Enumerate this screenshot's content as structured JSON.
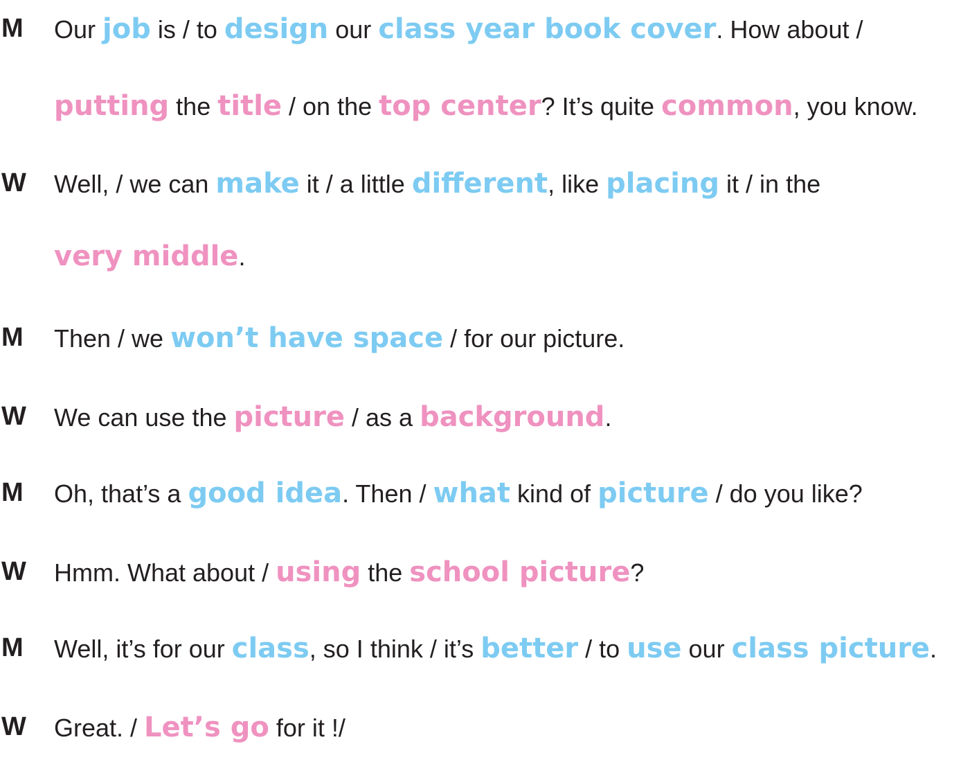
{
  "colors": {
    "text": "#231f20",
    "stress_blue": "#7dcbf2",
    "stress_pink": "#ef92c0"
  },
  "dialogue": [
    {
      "speaker": "M",
      "segments": [
        {
          "t": "Our ",
          "c": "plain"
        },
        {
          "t": "job",
          "c": "blue"
        },
        {
          "t": " is / to ",
          "c": "plain"
        },
        {
          "t": "design",
          "c": "blue"
        },
        {
          "t": " our ",
          "c": "plain"
        },
        {
          "t": "class year book cover",
          "c": "blue"
        },
        {
          "t": ". How about /",
          "c": "plain"
        }
      ]
    },
    {
      "speaker": "",
      "segments": [
        {
          "t": "putting",
          "c": "pink"
        },
        {
          "t": " the ",
          "c": "plain"
        },
        {
          "t": "title",
          "c": "pink"
        },
        {
          "t": " / on the ",
          "c": "plain"
        },
        {
          "t": "top center",
          "c": "pink"
        },
        {
          "t": "? It’s quite ",
          "c": "plain"
        },
        {
          "t": "common",
          "c": "pink"
        },
        {
          "t": ", you know.",
          "c": "plain"
        }
      ]
    },
    {
      "speaker": "W",
      "segments": [
        {
          "t": "Well, / we can ",
          "c": "plain"
        },
        {
          "t": "make",
          "c": "blue"
        },
        {
          "t": " it / a little ",
          "c": "plain"
        },
        {
          "t": "different",
          "c": "blue"
        },
        {
          "t": ", like ",
          "c": "plain"
        },
        {
          "t": "placing",
          "c": "blue"
        },
        {
          "t": " it / in the",
          "c": "plain"
        }
      ]
    },
    {
      "speaker": "",
      "segments": [
        {
          "t": "very middle",
          "c": "pink"
        },
        {
          "t": ".",
          "c": "plain"
        }
      ]
    },
    {
      "speaker": "M",
      "segments": [
        {
          "t": " Then / we ",
          "c": "plain"
        },
        {
          "t": "won’t have space",
          "c": "blue"
        },
        {
          "t": " / for our picture.",
          "c": "plain"
        }
      ]
    },
    {
      "speaker": "W",
      "segments": [
        {
          "t": "We can use the ",
          "c": "plain"
        },
        {
          "t": "picture",
          "c": "pink"
        },
        {
          "t": " / as a ",
          "c": "plain"
        },
        {
          "t": "background",
          "c": "pink"
        },
        {
          "t": ".",
          "c": "plain"
        }
      ]
    },
    {
      "speaker": "M",
      "segments": [
        {
          "t": "Oh, that’s a ",
          "c": "plain"
        },
        {
          "t": "good idea",
          "c": "blue"
        },
        {
          "t": ". Then / ",
          "c": "plain"
        },
        {
          "t": "what",
          "c": "blue"
        },
        {
          "t": " kind of ",
          "c": "plain"
        },
        {
          "t": "picture",
          "c": "blue"
        },
        {
          "t": " / do you like?",
          "c": "plain"
        }
      ]
    },
    {
      "speaker": "W",
      "segments": [
        {
          "t": "Hmm. What about / ",
          "c": "plain"
        },
        {
          "t": "using",
          "c": "pink"
        },
        {
          "t": " the ",
          "c": "plain"
        },
        {
          "t": "school picture",
          "c": "pink"
        },
        {
          "t": "?",
          "c": "plain"
        }
      ]
    },
    {
      "speaker": "M",
      "segments": [
        {
          "t": "Well, it’s for our ",
          "c": "plain"
        },
        {
          "t": "class",
          "c": "blue"
        },
        {
          "t": ", so I think / it’s ",
          "c": "plain"
        },
        {
          "t": "better",
          "c": "blue"
        },
        {
          "t": " / to ",
          "c": "plain"
        },
        {
          "t": "use",
          "c": "blue"
        },
        {
          "t": " our ",
          "c": "plain"
        },
        {
          "t": "class picture",
          "c": "blue"
        },
        {
          "t": ".",
          "c": "plain"
        }
      ]
    },
    {
      "speaker": "W",
      "segments": [
        {
          "t": "Great. / ",
          "c": "plain"
        },
        {
          "t": "Let’s go",
          "c": "pink"
        },
        {
          "t": " for it !/",
          "c": "plain"
        }
      ]
    }
  ]
}
